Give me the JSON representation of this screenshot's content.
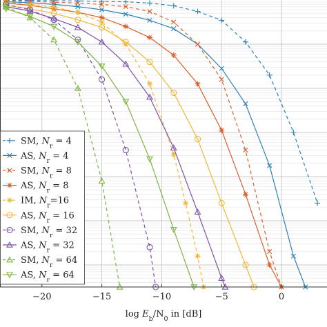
{
  "chart_data": {
    "type": "line",
    "title": "",
    "xlabel": "log E_b/N_0 in [dB]",
    "xlabel_parts": [
      "log ",
      "E",
      "b",
      "/N",
      "0",
      " in [dB]"
    ],
    "ylabel": "",
    "xlim": [
      -23.5,
      3.8
    ],
    "ylim": [
      -6.5,
      0
    ],
    "y_scale": "log",
    "grid": true,
    "legend_placement": "lower-left",
    "x_ticks": [
      -20,
      -15,
      -10,
      -5,
      0
    ],
    "x_tick_labels": [
      "−20",
      "−15",
      "−10",
      "−5",
      "0"
    ],
    "series": [
      {
        "name": "SM, N_r = 4",
        "label_parts": [
          "SM, ",
          "N",
          "r",
          " = 4"
        ],
        "color": "#2c7fb8",
        "dashed": true,
        "marker": "plus",
        "x": [
          -23,
          -21,
          -19,
          -17,
          -15,
          -13,
          -11,
          -9,
          -7,
          -5,
          -3,
          -1,
          1,
          3
        ],
        "y": [
          -0.01,
          -0.01,
          -0.015,
          -0.02,
          -0.03,
          -0.04,
          -0.07,
          -0.13,
          -0.26,
          -0.46,
          -0.95,
          -1.7,
          -3.0,
          -4.6
        ]
      },
      {
        "name": "AS, N_r = 4",
        "label_parts": [
          "AS, ",
          "N",
          "r",
          " = 4"
        ],
        "color": "#2c7fb8",
        "dashed": false,
        "marker": "x",
        "x": [
          -23,
          -21,
          -19,
          -17,
          -15,
          -13,
          -11,
          -9,
          -7,
          -5,
          -3,
          -1,
          1,
          2
        ],
        "y": [
          -0.04,
          -0.06,
          -0.1,
          -0.15,
          -0.22,
          -0.32,
          -0.46,
          -0.65,
          -1.0,
          -1.55,
          -2.35,
          -3.75,
          -5.8,
          -6.5
        ]
      },
      {
        "name": "SM, N_r = 8",
        "label_parts": [
          "SM, ",
          "N",
          "r",
          " = 8"
        ],
        "color": "#d95f2b",
        "dashed": true,
        "marker": "x",
        "x": [
          -23,
          -21,
          -19,
          -17,
          -15,
          -13,
          -11,
          -9,
          -7,
          -5,
          -3,
          -1,
          0
        ],
        "y": [
          -0.02,
          -0.03,
          -0.05,
          -0.07,
          -0.1,
          -0.15,
          -0.26,
          -0.5,
          -1.0,
          -1.8,
          -3.4,
          -5.7,
          -6.5
        ]
      },
      {
        "name": "AS, N_r = 8",
        "label_parts": [
          "AS, ",
          "N",
          "r",
          " = 8"
        ],
        "color": "#d95f2b",
        "dashed": false,
        "marker": "star",
        "x": [
          -23,
          -21,
          -19,
          -17,
          -15,
          -13,
          -11,
          -9,
          -7,
          -5,
          -3,
          -1,
          0
        ],
        "y": [
          -0.07,
          -0.12,
          -0.2,
          -0.28,
          -0.4,
          -0.6,
          -0.85,
          -1.25,
          -1.9,
          -2.95,
          -4.4,
          -6.0,
          -6.5
        ]
      },
      {
        "name": "IM, N_r=16",
        "label_parts": [
          "IM, ",
          "N",
          "r",
          "=16"
        ],
        "color": "#f0b733",
        "dashed": true,
        "marker": "star",
        "x": [
          -23,
          -21,
          -19,
          -17,
          -15,
          -13,
          -11,
          -9,
          -8,
          -7,
          -6.5
        ],
        "y": [
          -0.05,
          -0.09,
          -0.16,
          -0.28,
          -0.5,
          -1.0,
          -1.9,
          -3.5,
          -4.6,
          -5.8,
          -6.5
        ]
      },
      {
        "name": "AS, N_r = 16",
        "label_parts": [
          "AS, ",
          "N",
          "r",
          " = 16"
        ],
        "color": "#f0b733",
        "dashed": false,
        "marker": "circle",
        "x": [
          -23,
          -21,
          -19,
          -17,
          -15,
          -13,
          -11,
          -9,
          -7,
          -5,
          -3,
          -2.3
        ],
        "y": [
          -0.12,
          -0.2,
          -0.3,
          -0.45,
          -0.62,
          -0.95,
          -1.4,
          -2.1,
          -3.15,
          -4.6,
          -6.0,
          -6.5
        ]
      },
      {
        "name": "SM, N_r = 32",
        "label_parts": [
          "SM, ",
          "N",
          "r",
          " = 32"
        ],
        "color": "#7b50a6",
        "dashed": true,
        "marker": "circle",
        "x": [
          -23,
          -21,
          -19,
          -17,
          -15,
          -13,
          -11,
          -10.5
        ],
        "y": [
          -0.1,
          -0.22,
          -0.45,
          -0.9,
          -1.8,
          -3.4,
          -5.6,
          -6.5
        ]
      },
      {
        "name": "AS, N_r = 32",
        "label_parts": [
          "AS, ",
          "N",
          "r",
          " = 32"
        ],
        "color": "#7b50a6",
        "dashed": false,
        "marker": "triangle",
        "x": [
          -23,
          -21,
          -19,
          -17,
          -15,
          -13,
          -11,
          -9,
          -7,
          -5,
          -4.7
        ],
        "y": [
          -0.15,
          -0.25,
          -0.42,
          -0.62,
          -0.95,
          -1.45,
          -2.2,
          -3.35,
          -4.8,
          -6.3,
          -6.5
        ]
      },
      {
        "name": "SM, N_r = 64",
        "label_parts": [
          "SM, ",
          "N",
          "r",
          " = 64"
        ],
        "color": "#7cb342",
        "dashed": true,
        "marker": "triangle",
        "x": [
          -23,
          -21,
          -19,
          -17,
          -15,
          -13.5
        ],
        "y": [
          -0.15,
          -0.4,
          -0.9,
          -2.0,
          -4.1,
          -6.5
        ]
      },
      {
        "name": "AS, N_r = 64",
        "label_parts": [
          "AS, ",
          "N",
          "r",
          " = 64"
        ],
        "color": "#7cb342",
        "dashed": false,
        "marker": "triangle-down",
        "x": [
          -23,
          -21,
          -19,
          -17,
          -15,
          -13,
          -11,
          -9,
          -7.3
        ],
        "y": [
          -0.2,
          -0.37,
          -0.6,
          -0.95,
          -1.5,
          -2.3,
          -3.6,
          -5.2,
          -6.5
        ]
      }
    ]
  }
}
